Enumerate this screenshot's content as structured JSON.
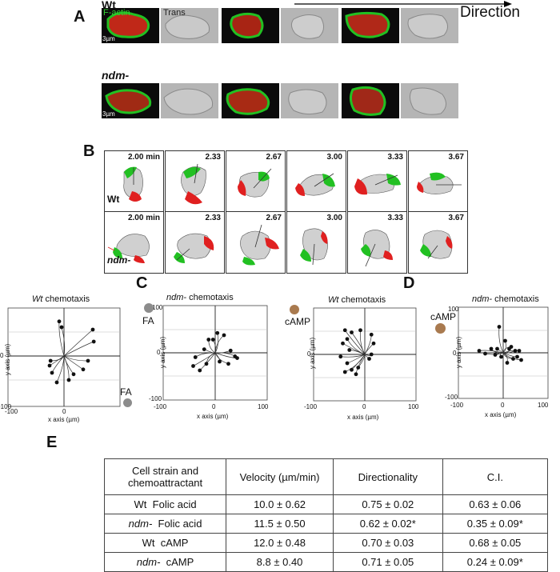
{
  "panel_letters": {
    "a": "A",
    "b": "B",
    "c": "C",
    "d": "D",
    "e": "E"
  },
  "panel_a": {
    "row1_label": "Wt",
    "row2_label": "ndm-",
    "factin_label": "F-actin",
    "trans_label": "Trans",
    "scale_label": "3µm",
    "direction_label": "Direction",
    "colors": {
      "factin": "#22c022",
      "body": "#c02818",
      "trans": "#b8b8b8"
    }
  },
  "panel_b": {
    "wt_label": "Wt",
    "ndm_label": "ndm-",
    "times": [
      "2.00 min",
      "2.33",
      "2.67",
      "3.00",
      "3.33",
      "3.67"
    ],
    "colors": {
      "green": "#22c022",
      "red": "#e02020",
      "cell": "#d0d0d0"
    }
  },
  "plots": [
    {
      "title_prefix": "",
      "title_italic": "Wt",
      "title_rest": " chemotaxis",
      "attractant": "FA",
      "attractant_color": "#8c8c8c",
      "xlabel": "x axis (µm)",
      "ylabel": "y axis (µm)",
      "x_ticks": [
        "-100",
        "0",
        ""
      ],
      "y_ticks": [
        "",
        "0",
        "-100"
      ]
    },
    {
      "title_prefix": "",
      "title_italic": "ndm-",
      "title_rest": " chemotaxis",
      "attractant": "FA",
      "attractant_color": "#8c8c8c",
      "xlabel": "x axis (µm)",
      "ylabel": "y axis (µm)",
      "x_ticks": [
        "-100",
        "0",
        "100"
      ],
      "y_ticks": [
        "100",
        "0",
        "-100"
      ]
    },
    {
      "title_prefix": "",
      "title_italic": "Wt",
      "title_rest": " chemotaxis",
      "attractant": "cAMP",
      "attractant_color": "#a97a4f",
      "xlabel": "x axis (µm)",
      "ylabel": "y axis (µm)",
      "x_ticks": [
        "-100",
        "0",
        "100"
      ],
      "y_ticks": [
        "",
        "0",
        ""
      ]
    },
    {
      "title_prefix": "",
      "title_italic": "ndm-",
      "title_rest": " chemotaxis",
      "attractant": "cAMP",
      "attractant_color": "#a97a4f",
      "xlabel": "x axis (µm)",
      "ylabel": "y axis (µm)",
      "x_ticks": [
        "-100",
        "0",
        "100"
      ],
      "y_ticks": [
        "100",
        "0",
        "-100"
      ]
    }
  ],
  "table": {
    "headers": [
      "Cell strain and chemoattractant",
      "Velocity (µm/min)",
      "Directionality",
      "C.I."
    ],
    "rows": [
      {
        "strain": "Wt",
        "strain_italic": false,
        "attractant": "Folic acid",
        "velocity": "10.0 ± 0.62",
        "directionality": "0.75 ± 0.02",
        "ci": "0.63 ± 0.06"
      },
      {
        "strain": "ndm-",
        "strain_italic": true,
        "attractant": "Folic acid",
        "velocity": "11.5 ± 0.50",
        "directionality": "0.62 ± 0.02*",
        "ci": "0.35 ± 0.09*"
      },
      {
        "strain": "Wt",
        "strain_italic": false,
        "attractant": "cAMP",
        "velocity": "12.0 ± 0.48",
        "directionality": "0.70 ± 0.03",
        "ci": "0.68 ± 0.05"
      },
      {
        "strain": "ndm-",
        "strain_italic": true,
        "attractant": "cAMP",
        "velocity": "8.8 ± 0.40",
        "directionality": "0.71 ± 0.05",
        "ci": "0.24 ± 0.09*"
      }
    ]
  }
}
